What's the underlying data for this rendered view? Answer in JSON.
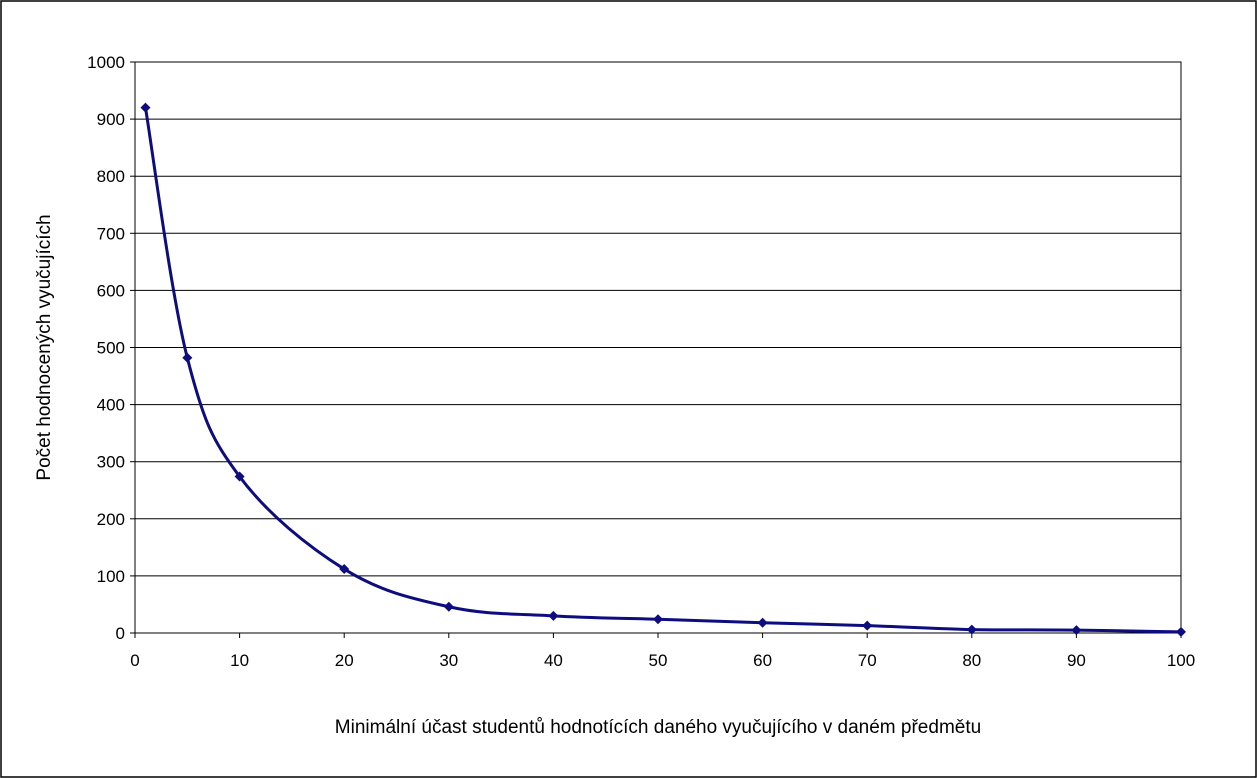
{
  "chart_data": {
    "type": "line",
    "title": "",
    "xlabel": "Minimální účast studentů hodnotících daného vyučujícího v daném předmětu",
    "ylabel": "Počet hodnocených vyučujících",
    "x": [
      1,
      5,
      10,
      20,
      30,
      40,
      50,
      60,
      70,
      80,
      90,
      100
    ],
    "series": [
      {
        "values": [
          920,
          482,
          274,
          112,
          46,
          30,
          24,
          18,
          13,
          6,
          5,
          2
        ]
      }
    ],
    "xlim": [
      0,
      100
    ],
    "ylim": [
      0,
      1000
    ],
    "x_ticks": [
      "0",
      "10",
      "20",
      "30",
      "40",
      "50",
      "60",
      "70",
      "80",
      "90",
      "100"
    ],
    "y_ticks": [
      "0",
      "100",
      "200",
      "300",
      "400",
      "500",
      "600",
      "700",
      "800",
      "900",
      "1000"
    ],
    "grid": "horizontal",
    "smooth": true,
    "marker": "diamond",
    "colors": {
      "line": "#0d0d80",
      "grid": "#000000",
      "frame": "#000000"
    }
  }
}
